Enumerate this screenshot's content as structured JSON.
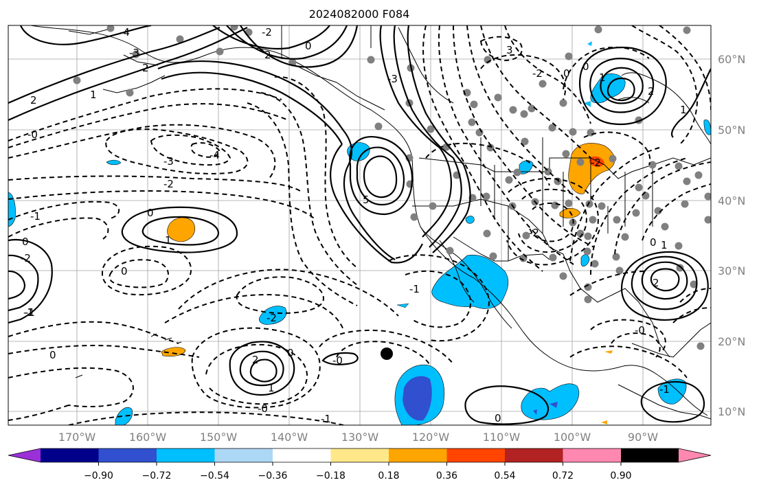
{
  "title": "2024082000 F084",
  "longitude_labels": [
    "170°W",
    "160°W",
    "150°W",
    "140°W",
    "130°W",
    "120°W",
    "110°W",
    "100°W",
    "90°W"
  ],
  "latitude_labels": [
    "60°N",
    "50°N",
    "40°N",
    "30°N",
    "20°N",
    "10°N"
  ],
  "colorbar": {
    "ticks": [
      "−0.90",
      "−0.72",
      "−0.54",
      "−0.36",
      "−0.18",
      "0.18",
      "0.36",
      "0.54",
      "0.72",
      "0.90"
    ],
    "colors": [
      "#9b30d9",
      "#00008b",
      "#3050d0",
      "#00bfff",
      "#add8f5",
      "#ffffff",
      "#ffe88a",
      "#ffa500",
      "#ff4500",
      "#b22222",
      "#ff88b0"
    ],
    "extend": "both"
  },
  "contour_labels": {
    "l1": "2",
    "l2": "-4",
    "l3": "-3",
    "l4": "-0",
    "l5": "1",
    "l6": "2",
    "l7": "-1",
    "l8": "0",
    "l9": "-2",
    "l10": "-3",
    "l11": "-4",
    "l12": "-2",
    "l13": "-1",
    "l14": "0",
    "l15": "1",
    "l16": "0",
    "l17": "-2",
    "l18": "-1",
    "l19": "0",
    "l20": "-0",
    "l21": "2",
    "l22": "1",
    "l23": "0",
    "l24": "-0",
    "l25": "-1",
    "l26": "0",
    "l27": "5",
    "l28": "-2",
    "l29": "-3",
    "l30": "-1",
    "l31": "0",
    "l32": "-2",
    "l33": "-2",
    "l34": "0",
    "l35": "1",
    "l36": "2",
    "l37": "1",
    "l38": "2",
    "l39": "0",
    "l40": "1",
    "l41": "-0",
    "l42": "-2",
    "l43": "2",
    "l44": "0",
    "l45": "-1",
    "l46": "3"
  }
}
